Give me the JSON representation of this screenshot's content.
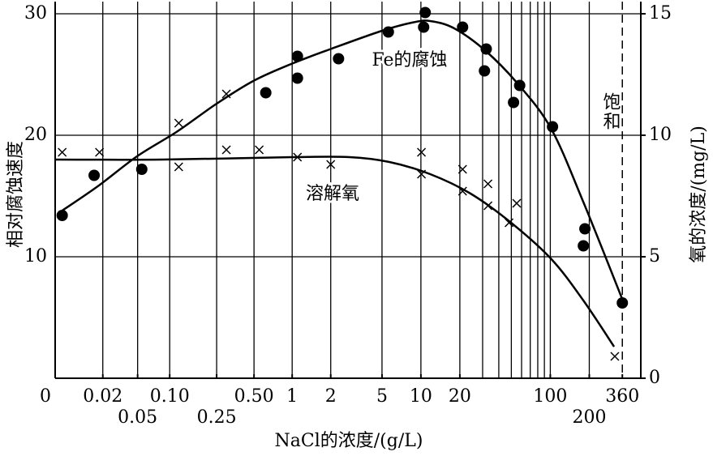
{
  "chart_data": {
    "type": "scatter",
    "xlabel": "NaCl的浓度/(g/L)",
    "ylabel": "相对腐蚀速度",
    "y2label": "氧的浓度/(mg/L)",
    "xscale": "log",
    "xlim": [
      0,
      500
    ],
    "xticks": [
      0,
      0.02,
      0.05,
      {
        "value": 0.1,
        "label": "0.10"
      },
      0.25,
      {
        "value": 0.5,
        "label": "0.50"
      },
      1,
      2,
      5,
      10,
      20,
      100,
      200,
      360
    ],
    "xgrid": [
      0.02,
      0.05,
      0.1,
      0.25,
      0.5,
      1,
      2,
      5,
      10,
      20,
      30,
      40,
      50,
      60,
      70,
      80,
      90,
      100,
      200
    ],
    "ylim": [
      0,
      31
    ],
    "yticks": [
      10,
      20,
      30
    ],
    "y2lim": [
      0,
      15.5
    ],
    "y2ticks": [
      0,
      5,
      10,
      15
    ],
    "grid": true,
    "saturation": {
      "x": 360,
      "label": "饱和"
    },
    "series": [
      {
        "name": "Fe的腐蚀",
        "color": "#000000",
        "marker": "dot",
        "x": [
          0.002,
          0.015,
          0.055,
          0.62,
          1.1,
          1.1,
          2.3,
          5.6,
          10.8,
          10.5,
          21,
          32,
          31,
          58,
          52,
          104,
          185,
          180,
          360
        ],
        "values": [
          13.4,
          16.7,
          17.2,
          23.5,
          26.5,
          24.7,
          26.3,
          28.5,
          30.1,
          28.9,
          28.9,
          27.1,
          25.3,
          24.1,
          22.7,
          20.7,
          12.3,
          10.9,
          6.2
        ],
        "curve": {
          "x": [
            0.002,
            0.017,
            0.05,
            0.116,
            0.25,
            0.5,
            1,
            2,
            5,
            8.8,
            11.8,
            18.1,
            32,
            57.5,
            102,
            180,
            360
          ],
          "values": [
            13.8,
            15.8,
            18.3,
            20.3,
            22.6,
            24.5,
            25.9,
            27.1,
            28.6,
            29.3,
            29.4,
            28.8,
            26.9,
            24.1,
            20.5,
            14.5,
            6.5
          ]
        }
      },
      {
        "name": "溶解氧",
        "color": "#000000",
        "marker": "cross",
        "axis": "y2",
        "x": [
          0.002,
          0.018,
          0.12,
          0.12,
          0.3,
          0.3,
          0.55,
          1.1,
          2.0,
          10.1,
          10.1,
          21,
          21,
          33,
          33,
          48,
          55,
          315
        ],
        "values": [
          9.3,
          9.3,
          8.7,
          10.5,
          11.7,
          9.4,
          9.4,
          9.1,
          8.8,
          9.3,
          8.4,
          8.6,
          7.7,
          8.0,
          7.1,
          6.4,
          7.2,
          0.9
        ],
        "curve": {
          "x": [
            0,
            0.086,
            1.0,
            2.8,
            5.7,
            11.8,
            24.2,
            49.8,
            102,
            180,
            311
          ],
          "values": [
            9.0,
            9.0,
            9.1,
            9.1,
            8.9,
            8.4,
            7.6,
            6.4,
            4.9,
            3.2,
            1.3
          ]
        }
      }
    ]
  }
}
